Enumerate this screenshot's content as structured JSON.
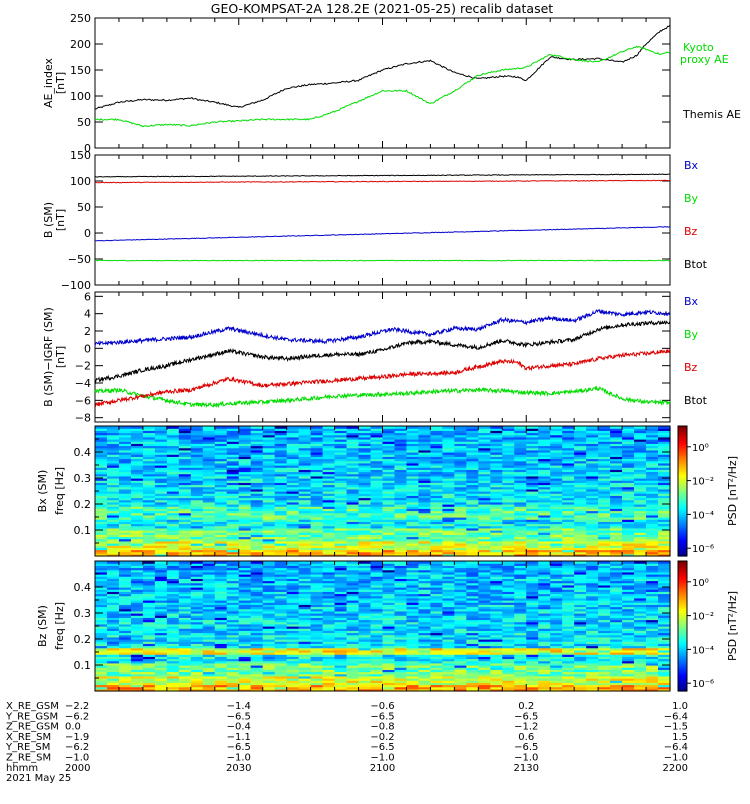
{
  "title": "GEO-KOMPSAT-2A 128.2E (2021-05-25) recalib dataset",
  "colors": {
    "black": "#000000",
    "green": "#00dd00",
    "blue": "#0000cc",
    "red": "#dd0000"
  },
  "chart_data": [
    {
      "type": "line",
      "ylabel_lines": [
        "AE_index",
        "[nT]"
      ],
      "ylim": [
        0,
        250
      ],
      "yticks": [
        "0",
        "50",
        "100",
        "150",
        "200",
        "250"
      ],
      "xlim": [
        0,
        120
      ],
      "series": [
        {
          "name": "Themis AE",
          "color": "#000000",
          "x": [
            0,
            5,
            10,
            15,
            20,
            22,
            25,
            30,
            35,
            40,
            45,
            50,
            55,
            60,
            65,
            70,
            75,
            80,
            82,
            85,
            88,
            90,
            95,
            100,
            105,
            110,
            113,
            115,
            118,
            120
          ],
          "values": [
            75,
            88,
            93,
            92,
            96,
            92,
            88,
            78,
            92,
            115,
            122,
            125,
            130,
            150,
            162,
            168,
            145,
            133,
            135,
            138,
            137,
            130,
            175,
            170,
            172,
            165,
            178,
            200,
            225,
            235
          ]
        },
        {
          "name": "Kyoto proxy AE",
          "color": "#00dd00",
          "x": [
            0,
            5,
            10,
            15,
            20,
            25,
            30,
            35,
            40,
            45,
            50,
            55,
            60,
            65,
            70,
            75,
            80,
            85,
            90,
            95,
            100,
            105,
            110,
            113,
            115,
            118,
            120
          ],
          "values": [
            55,
            55,
            42,
            45,
            43,
            50,
            52,
            55,
            55,
            55,
            70,
            90,
            110,
            110,
            85,
            110,
            140,
            150,
            155,
            180,
            170,
            165,
            185,
            195,
            190,
            180,
            185
          ]
        }
      ]
    },
    {
      "type": "line",
      "ylabel_lines": [
        "B (SM)",
        "[nT]"
      ],
      "ylim": [
        -100,
        150
      ],
      "yticks": [
        "−100",
        "−50",
        "0",
        "50",
        "100",
        "150"
      ],
      "xlim": [
        0,
        120
      ],
      "legend": [
        "Bx",
        "By",
        "Bz",
        "Btot"
      ],
      "series": [
        {
          "name": "Bx",
          "color": "#0000cc",
          "x": [
            0,
            120
          ],
          "values": [
            -15,
            12
          ]
        },
        {
          "name": "By",
          "color": "#00dd00",
          "x": [
            0,
            120
          ],
          "values": [
            -53,
            -53
          ]
        },
        {
          "name": "Bz",
          "color": "#dd0000",
          "x": [
            0,
            120
          ],
          "values": [
            97,
            101
          ]
        },
        {
          "name": "Btot",
          "color": "#000000",
          "x": [
            0,
            120
          ],
          "values": [
            108,
            113
          ]
        }
      ]
    },
    {
      "type": "line",
      "ylabel_lines": [
        "B (SM)−IGRF (SM)",
        "[nT]"
      ],
      "ylim": [
        -8.5,
        6.5
      ],
      "yticks": [
        "−8",
        "−6",
        "−4",
        "−2",
        "0",
        "2",
        "4",
        "6"
      ],
      "xlim": [
        0,
        120
      ],
      "legend": [
        "Bx",
        "By",
        "Bz",
        "Btot"
      ],
      "series": [
        {
          "name": "Bx",
          "color": "#0000cc",
          "x": [
            0,
            10,
            20,
            28,
            35,
            40,
            48,
            55,
            62,
            70,
            75,
            80,
            85,
            90,
            95,
            100,
            105,
            110,
            115,
            120
          ],
          "values": [
            0.5,
            0.9,
            1.3,
            2.3,
            1.5,
            1.0,
            0.8,
            1.3,
            2.2,
            1.6,
            2.3,
            2.2,
            3.3,
            3.0,
            3.5,
            3.2,
            4.3,
            3.9,
            4.2,
            4.0
          ]
        },
        {
          "name": "By",
          "color": "#00dd00",
          "x": [
            0,
            5,
            10,
            15,
            20,
            25,
            30,
            35,
            40,
            45,
            50,
            55,
            60,
            65,
            70,
            75,
            80,
            85,
            90,
            95,
            100,
            105,
            110,
            115,
            120
          ],
          "values": [
            -5,
            -4.8,
            -5.5,
            -6,
            -6.5,
            -6.5,
            -6.3,
            -6.2,
            -6.0,
            -5.8,
            -5.5,
            -5.4,
            -5.3,
            -5.2,
            -5.0,
            -4.9,
            -4.8,
            -4.9,
            -5.1,
            -5.2,
            -5.0,
            -4.6,
            -5.8,
            -6.2,
            -6.3
          ]
        },
        {
          "name": "Bz",
          "color": "#dd0000",
          "x": [
            0,
            5,
            10,
            15,
            20,
            28,
            35,
            40,
            45,
            50,
            55,
            60,
            65,
            70,
            75,
            80,
            85,
            88,
            90,
            95,
            100,
            105,
            110,
            115,
            120
          ],
          "values": [
            -6.5,
            -6.0,
            -5.5,
            -5.0,
            -4.8,
            -3.5,
            -4.3,
            -4.1,
            -3.9,
            -3.7,
            -3.5,
            -3.3,
            -3.0,
            -2.9,
            -2.8,
            -2.1,
            -1.5,
            -1.6,
            -2.3,
            -2.0,
            -1.8,
            -1.2,
            -0.8,
            -0.6,
            -0.3
          ]
        },
        {
          "name": "Btot",
          "color": "#000000",
          "x": [
            0,
            5,
            10,
            15,
            20,
            28,
            35,
            40,
            45,
            50,
            55,
            60,
            65,
            70,
            75,
            80,
            85,
            90,
            95,
            100,
            105,
            110,
            115,
            120
          ],
          "values": [
            -3.7,
            -3.2,
            -2.5,
            -2.0,
            -1.3,
            -0.3,
            -1.0,
            -1.2,
            -0.9,
            -0.7,
            -0.7,
            -0.2,
            0.6,
            0.8,
            0.4,
            0.1,
            0.9,
            0.4,
            0.7,
            1.0,
            2.2,
            2.7,
            2.9,
            3.0
          ]
        }
      ]
    },
    {
      "type": "heatmap",
      "ylabel_lines": [
        "Bx (SM)",
        "freq [Hz]"
      ],
      "ylim": [
        0,
        0.5
      ],
      "yticks": [
        "0.1",
        "0.2",
        "0.3",
        "0.4"
      ],
      "colorbar_label": "PSD [nT²/Hz]",
      "colorbar_ticks": [
        "10⁰",
        "10⁻²",
        "10⁻⁴",
        "10⁻⁶"
      ]
    },
    {
      "type": "heatmap",
      "ylabel_lines": [
        "Bz (SM)",
        "freq [Hz]"
      ],
      "ylim": [
        0,
        0.5
      ],
      "yticks": [
        "0.1",
        "0.2",
        "0.3",
        "0.4"
      ],
      "colorbar_label": "PSD [nT²/Hz]",
      "colorbar_ticks": [
        "10⁰",
        "10⁻²",
        "10⁻⁴",
        "10⁻⁶"
      ]
    }
  ],
  "panel_labels": {
    "ae_themis": "Themis AE",
    "ae_kyoto_1": "Kyoto",
    "ae_kyoto_2": "proxy AE"
  },
  "ephemeris": {
    "rows": [
      {
        "label": "X_RE_GSM",
        "values": [
          "−2.2",
          "−1.4",
          "−0.6",
          "0.2",
          "1.0"
        ]
      },
      {
        "label": "Y_RE_GSM",
        "values": [
          "−6.2",
          "−6.5",
          "−6.5",
          "−6.5",
          "−6.4"
        ]
      },
      {
        "label": "Z_RE_GSM",
        "values": [
          "0.0",
          "−0.4",
          "−0.8",
          "−1.2",
          "−1.5"
        ]
      },
      {
        "label": "X_RE_SM",
        "values": [
          "−1.9",
          "−1.1",
          "−0.2",
          "0.6",
          "1.5"
        ]
      },
      {
        "label": "Y_RE_SM",
        "values": [
          "−6.2",
          "−6.5",
          "−6.5",
          "−6.5",
          "−6.4"
        ]
      },
      {
        "label": "Z_RE_SM",
        "values": [
          "−1.0",
          "−1.0",
          "−1.0",
          "−1.0",
          "−1.0"
        ]
      },
      {
        "label": "hhmm",
        "values": [
          "2000",
          "2030",
          "2100",
          "2130",
          "2200"
        ]
      }
    ],
    "date": "2021 May 25"
  }
}
